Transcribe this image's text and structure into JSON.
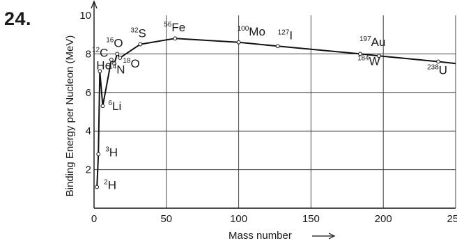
{
  "problem_number": "24.",
  "chart_data": {
    "type": "line",
    "title": "",
    "xlabel": "Mass number",
    "ylabel": "Binding Energy per Nucleon (MeV)",
    "xlim": [
      0,
      250
    ],
    "ylim": [
      0,
      10
    ],
    "grid": true,
    "x_ticks": [
      0,
      50,
      100,
      150,
      200,
      250
    ],
    "y_ticks": [
      2,
      4,
      6,
      8,
      10
    ],
    "x_tick_labels": [
      "0",
      "50",
      "100",
      "150",
      "200",
      "250"
    ],
    "y_tick_labels": [
      "2",
      "4",
      "6",
      "8",
      "10"
    ],
    "points": [
      {
        "x": 2,
        "y": 1.1,
        "mass": "2",
        "symbol": "H"
      },
      {
        "x": 3,
        "y": 2.8,
        "mass": "3",
        "symbol": "H"
      },
      {
        "x": 4,
        "y": 7.1,
        "mass": "",
        "symbol": "He"
      },
      {
        "x": 6,
        "y": 5.3,
        "mass": "6",
        "symbol": "Li"
      },
      {
        "x": 12,
        "y": 7.7,
        "mass": "12",
        "symbol": "C"
      },
      {
        "x": 14,
        "y": 7.5,
        "mass": "14",
        "symbol": "N"
      },
      {
        "x": 16,
        "y": 8.0,
        "mass": "16",
        "symbol": "O"
      },
      {
        "x": 18,
        "y": 7.8,
        "mass": "18",
        "symbol": "O"
      },
      {
        "x": 32,
        "y": 8.5,
        "mass": "32",
        "symbol": "S"
      },
      {
        "x": 56,
        "y": 8.8,
        "mass": "56",
        "symbol": "Fe"
      },
      {
        "x": 100,
        "y": 8.6,
        "mass": "100",
        "symbol": "Mo"
      },
      {
        "x": 127,
        "y": 8.4,
        "mass": "127",
        "symbol": "I"
      },
      {
        "x": 184,
        "y": 8.0,
        "mass": "184",
        "symbol": "W"
      },
      {
        "x": 197,
        "y": 7.9,
        "mass": "197",
        "symbol": "Au"
      },
      {
        "x": 238,
        "y": 7.6,
        "mass": "238",
        "symbol": "U"
      }
    ],
    "curve": [
      [
        2,
        1.1
      ],
      [
        3,
        2.8
      ],
      [
        4,
        7.1
      ],
      [
        6,
        5.3
      ],
      [
        12,
        7.7
      ],
      [
        14,
        7.5
      ],
      [
        16,
        8.0
      ],
      [
        18,
        7.8
      ],
      [
        32,
        8.5
      ],
      [
        56,
        8.8
      ],
      [
        100,
        8.6
      ],
      [
        127,
        8.4
      ],
      [
        184,
        8.0
      ],
      [
        197,
        7.9
      ],
      [
        238,
        7.6
      ],
      [
        250,
        7.5
      ]
    ]
  }
}
